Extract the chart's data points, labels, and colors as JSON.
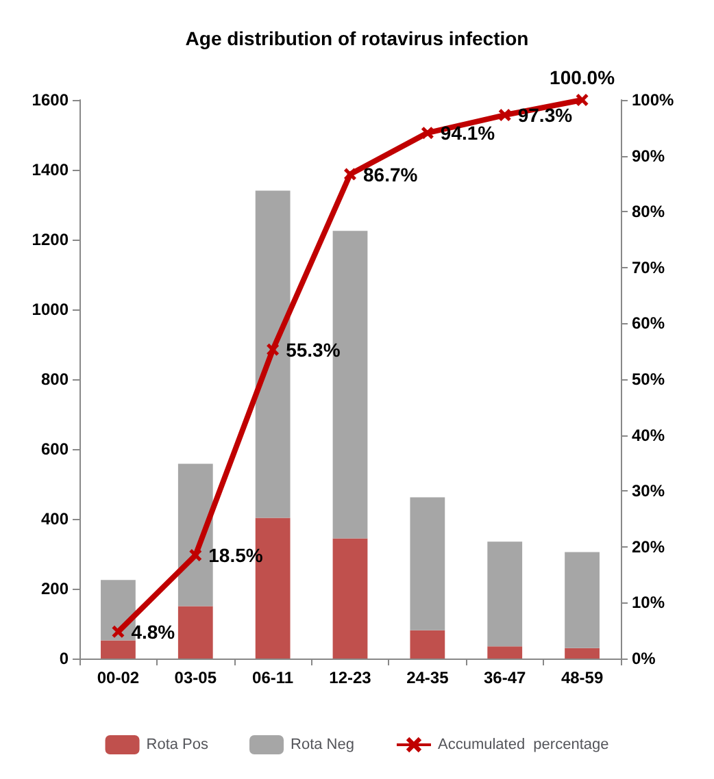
{
  "chart_data": {
    "type": "bar",
    "title": "Age distribution of rotavirus infection",
    "categories": [
      "00-02",
      "03-05",
      "06-11",
      "12-23",
      "24-35",
      "36-47",
      "48-59"
    ],
    "stacked": true,
    "series": [
      {
        "name": "Rota Pos",
        "color": "#c0504d",
        "values": [
          52,
          150,
          403,
          344,
          81,
          35,
          30
        ]
      },
      {
        "name": "Rota Neg",
        "color": "#a6a6a6",
        "values": [
          173,
          408,
          937,
          881,
          381,
          300,
          275
        ]
      },
      {
        "name": "Accumulated  percentage",
        "type": "line",
        "axis": "y2",
        "color": "#c00000",
        "values": [
          4.8,
          18.5,
          55.3,
          86.7,
          94.1,
          97.3,
          100.0
        ],
        "value_labels": [
          "4.8%",
          "18.5%",
          "55.3%",
          "86.7%",
          "94.1%",
          "97.3%",
          "100.0%"
        ]
      }
    ],
    "ylim": [
      0,
      1600
    ],
    "yticks": [
      0,
      200,
      400,
      600,
      800,
      1000,
      1200,
      1400,
      1600
    ],
    "y2lim": [
      0,
      100
    ],
    "y2ticks": [
      {
        "value": 0,
        "label": "0%"
      },
      {
        "value": 10,
        "label": "10%"
      },
      {
        "value": 20,
        "label": "20%"
      },
      {
        "value": 30,
        "label": "30%"
      },
      {
        "value": 40,
        "label": "40%"
      },
      {
        "value": 50,
        "label": "50%"
      },
      {
        "value": 60,
        "label": "60%"
      },
      {
        "value": 70,
        "label": "70%"
      },
      {
        "value": 80,
        "label": "80%"
      },
      {
        "value": 90,
        "label": "90%"
      },
      {
        "value": 100,
        "label": "100%"
      }
    ],
    "grid": false,
    "legend": "bottom",
    "marker": "cross",
    "line_style": "solid"
  }
}
